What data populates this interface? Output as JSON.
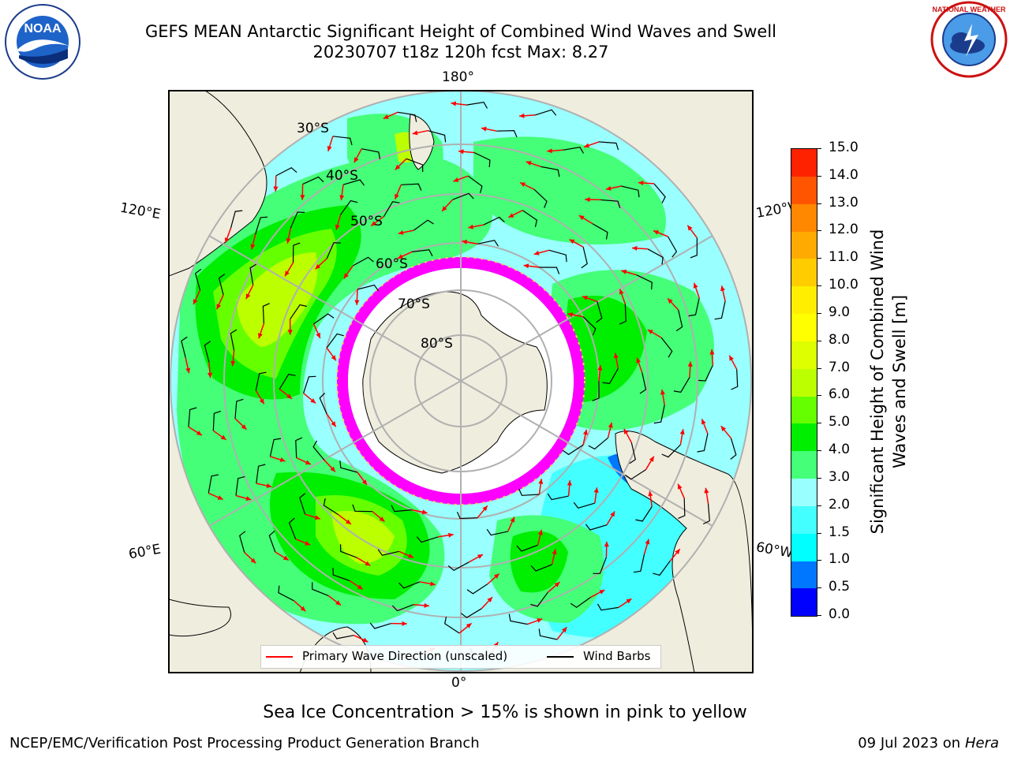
{
  "title": {
    "line1": "GEFS MEAN Antarctic Significant Height of Combined Wind Waves and Swell",
    "line2": "20230707 t18z 120h fcst   Max: 8.27"
  },
  "logos": {
    "left": {
      "name": "NOAA",
      "icon": "noaa-logo"
    },
    "right": {
      "name": "National Weather Service",
      "icon": "nws-logo"
    }
  },
  "map": {
    "projection": "south-polar-stereographic",
    "longitude_labels": {
      "top": "180°",
      "bottom": "0°",
      "upper_left": "120°E",
      "upper_right": "120°W",
      "lower_left": "60°E",
      "lower_right": "60°W"
    },
    "latitude_labels": [
      "30°S",
      "40°S",
      "50°S",
      "60°S",
      "70°S",
      "80°S"
    ],
    "colors": {
      "land": "#efedde",
      "ocean_bg": "#99ffff",
      "sea_ice": "#ff00ff",
      "ice_sheet": "#ffffff"
    }
  },
  "colorbar": {
    "label": "Significant Height of Combined Wind Waves and Swell [m]",
    "ticks": [
      "0.0",
      "0.5",
      "1.0",
      "1.5",
      "2.0",
      "3.0",
      "4.0",
      "5.0",
      "6.0",
      "7.0",
      "8.0",
      "9.0",
      "10.0",
      "11.0",
      "12.0",
      "13.0",
      "14.0",
      "15.0"
    ],
    "colors": [
      "#0000ff",
      "#0077ff",
      "#00ffff",
      "#44ffff",
      "#99ffff",
      "#44ff77",
      "#00ee00",
      "#66ff00",
      "#bbff00",
      "#ddff00",
      "#ffff00",
      "#ffee00",
      "#ffcc00",
      "#ffaa00",
      "#ff8800",
      "#ff5500",
      "#ff2200"
    ]
  },
  "legend": {
    "items": [
      {
        "label": "Primary Wave Direction (unscaled)",
        "color": "#ff0000"
      },
      {
        "label": "Wind Barbs",
        "color": "#000000"
      }
    ]
  },
  "footnote": "Sea Ice Concentration > 15% is shown in pink to yellow",
  "credit": {
    "left": "NCEP/EMC/Verification Post Processing Product Generation Branch",
    "right_prefix": "09 Jul 2023 on ",
    "right_host": "Hera"
  }
}
